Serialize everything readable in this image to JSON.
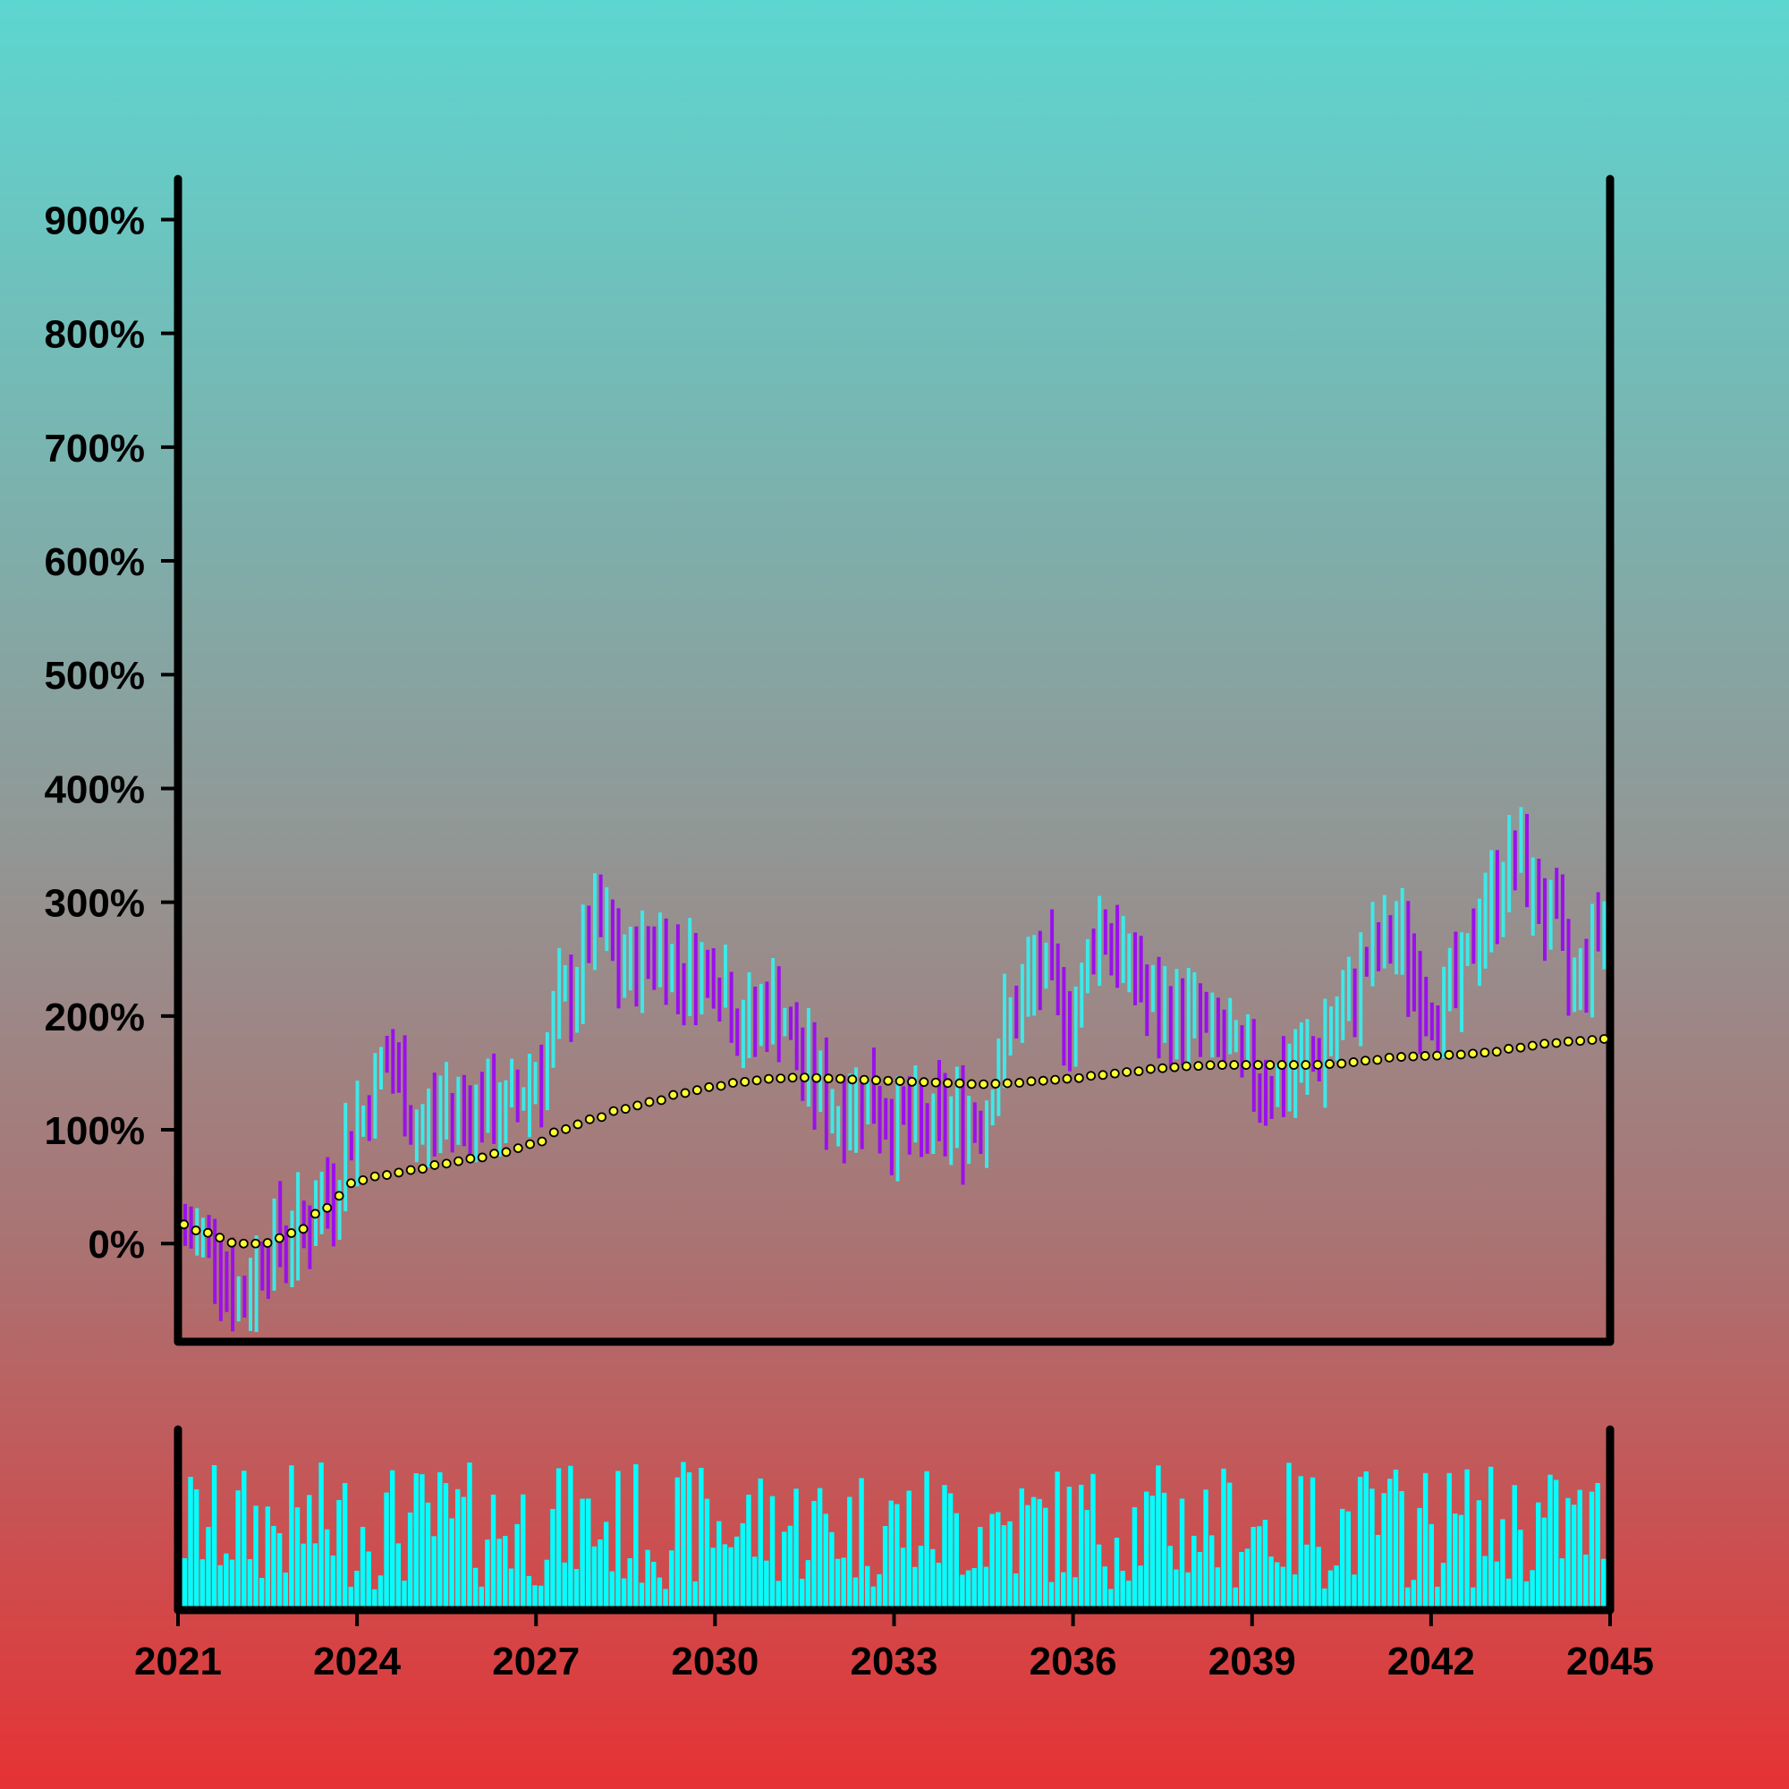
{
  "chart_data": {
    "type": "ohlc",
    "title": "",
    "xlabel": "",
    "ylabel": "",
    "x_ticks": [
      "2021",
      "2024",
      "2027",
      "2030",
      "2033",
      "2036",
      "2039",
      "2042",
      "2045"
    ],
    "y_ticks": [
      "0%",
      "100%",
      "200%",
      "300%",
      "400%",
      "500%",
      "600%",
      "700%",
      "800%",
      "900%"
    ],
    "ylim": [
      -80,
      920
    ],
    "xlim": [
      "2021-01",
      "2045-01"
    ],
    "grid": false,
    "legend": "none",
    "colors": {
      "up": "#3ee8e8",
      "down": "#9a10ec",
      "moving_average": "#ffff33",
      "volume": "#00ffff",
      "axes": "#000000"
    },
    "price_anchors": [
      [
        "2021-01",
        10
      ],
      [
        "2021-06",
        5
      ],
      [
        "2022-01",
        -50
      ],
      [
        "2022-06",
        0
      ],
      [
        "2023-01",
        10
      ],
      [
        "2023-06",
        40
      ],
      [
        "2024-01",
        110
      ],
      [
        "2024-06",
        160
      ],
      [
        "2025-01",
        100
      ],
      [
        "2025-06",
        120
      ],
      [
        "2026-01",
        120
      ],
      [
        "2026-06",
        115
      ],
      [
        "2027-01",
        150
      ],
      [
        "2027-06",
        210
      ],
      [
        "2028-01",
        280
      ],
      [
        "2028-06",
        240
      ],
      [
        "2029-01",
        260
      ],
      [
        "2029-06",
        240
      ],
      [
        "2030-01",
        240
      ],
      [
        "2030-06",
        190
      ],
      [
        "2031-01",
        210
      ],
      [
        "2031-06",
        160
      ],
      [
        "2032-01",
        115
      ],
      [
        "2032-06",
        130
      ],
      [
        "2033-01",
        110
      ],
      [
        "2033-06",
        100
      ],
      [
        "2034-01",
        110
      ],
      [
        "2034-06",
        110
      ],
      [
        "2035-01",
        200
      ],
      [
        "2035-06",
        240
      ],
      [
        "2036-01",
        200
      ],
      [
        "2036-06",
        280
      ],
      [
        "2037-01",
        240
      ],
      [
        "2037-06",
        200
      ],
      [
        "2038-01",
        200
      ],
      [
        "2038-06",
        180
      ],
      [
        "2039-01",
        150
      ],
      [
        "2039-06",
        140
      ],
      [
        "2040-01",
        160
      ],
      [
        "2040-06",
        190
      ],
      [
        "2041-01",
        250
      ],
      [
        "2041-06",
        270
      ],
      [
        "2042-01",
        210
      ],
      [
        "2042-06",
        220
      ],
      [
        "2043-01",
        300
      ],
      [
        "2043-06",
        340
      ],
      [
        "2044-01",
        290
      ],
      [
        "2044-06",
        230
      ],
      [
        "2045-01",
        290
      ]
    ],
    "moving_average_anchors": [
      [
        "2021-01",
        18
      ],
      [
        "2021-06",
        10
      ],
      [
        "2022-01",
        0
      ],
      [
        "2022-06",
        0
      ],
      [
        "2023-01",
        10
      ],
      [
        "2023-06",
        30
      ],
      [
        "2024-01",
        55
      ],
      [
        "2024-06",
        60
      ],
      [
        "2025-01",
        65
      ],
      [
        "2025-06",
        70
      ],
      [
        "2026-01",
        75
      ],
      [
        "2026-06",
        80
      ],
      [
        "2027-01",
        88
      ],
      [
        "2027-06",
        100
      ],
      [
        "2028-01",
        110
      ],
      [
        "2028-06",
        118
      ],
      [
        "2029-01",
        125
      ],
      [
        "2029-06",
        132
      ],
      [
        "2030-01",
        138
      ],
      [
        "2030-06",
        142
      ],
      [
        "2031-01",
        145
      ],
      [
        "2031-06",
        146
      ],
      [
        "2032-01",
        145
      ],
      [
        "2032-06",
        144
      ],
      [
        "2033-01",
        143
      ],
      [
        "2033-06",
        142
      ],
      [
        "2034-01",
        141
      ],
      [
        "2034-06",
        140
      ],
      [
        "2035-01",
        141
      ],
      [
        "2035-06",
        143
      ],
      [
        "2036-01",
        145
      ],
      [
        "2036-06",
        148
      ],
      [
        "2037-01",
        151
      ],
      [
        "2037-06",
        154
      ],
      [
        "2038-01",
        156
      ],
      [
        "2038-06",
        157
      ],
      [
        "2039-01",
        157
      ],
      [
        "2039-06",
        157
      ],
      [
        "2040-01",
        157
      ],
      [
        "2040-06",
        158
      ],
      [
        "2041-01",
        161
      ],
      [
        "2041-06",
        164
      ],
      [
        "2042-01",
        165
      ],
      [
        "2042-06",
        166
      ],
      [
        "2043-01",
        168
      ],
      [
        "2043-06",
        172
      ],
      [
        "2044-01",
        176
      ],
      [
        "2044-06",
        178
      ],
      [
        "2045-01",
        180
      ]
    ],
    "volume_level": 0.55
  }
}
